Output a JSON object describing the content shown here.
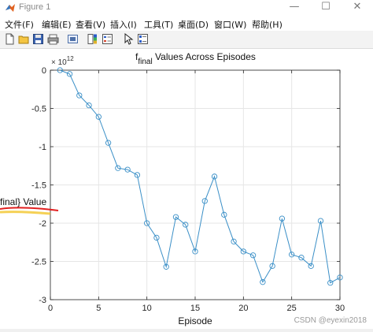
{
  "window": {
    "title": "Figure 1",
    "minimize_glyph": "—",
    "maximize_glyph": "☐",
    "close_glyph": "✕"
  },
  "menu": {
    "items": [
      {
        "label": "文件(F)"
      },
      {
        "label": "编辑(E)"
      },
      {
        "label": "查看(V)"
      },
      {
        "label": "插入(I)"
      },
      {
        "label": "工具(T)"
      },
      {
        "label": "桌面(D)"
      },
      {
        "label": "窗口(W)"
      },
      {
        "label": "帮助(H)"
      }
    ]
  },
  "toolbar": {
    "icons": [
      "new-figure-icon",
      "open-file-icon",
      "save-icon",
      "print-icon",
      "link-plot-icon",
      "colorbar-icon",
      "legend-icon",
      "edit-plot-pointer-icon",
      "property-inspector-icon"
    ]
  },
  "watermark": "CSDN @eyexin2018",
  "chart_data": {
    "type": "line",
    "title_main": "f",
    "title_sub": "final",
    "title_rest": " Values Across Episodes",
    "xlabel": "Episode",
    "ylabel_visible": "final} Value",
    "exponent_base": "× 10",
    "exponent_power": "12",
    "xlim": [
      0,
      30
    ],
    "ylim": [
      -3,
      0
    ],
    "xticks": [
      0,
      5,
      10,
      15,
      20,
      25,
      30
    ],
    "yticks": [
      0,
      -0.5,
      -1,
      -1.5,
      -2,
      -2.5,
      -3
    ],
    "ytick_labels": [
      "0",
      "-0.5",
      "-1",
      "-1.5",
      "-2",
      "-2.5",
      "-3"
    ],
    "grid": true,
    "line_color": "#3a8fc7",
    "marker": "circle",
    "series": [
      {
        "x": [
          1,
          2,
          3,
          4,
          5,
          6,
          7,
          8,
          9,
          10,
          11,
          12,
          13,
          14,
          15,
          16,
          17,
          18,
          19,
          20,
          21,
          22,
          23,
          24,
          25,
          26,
          27,
          28,
          29,
          30
        ],
        "values": [
          0,
          -0.05,
          -0.33,
          -0.46,
          -0.61,
          -0.95,
          -1.28,
          -1.3,
          -1.37,
          -2.0,
          -2.19,
          -2.57,
          -1.92,
          -2.02,
          -2.37,
          -1.71,
          -1.39,
          -1.89,
          -2.24,
          -2.37,
          -2.42,
          -2.77,
          -2.56,
          -1.94,
          -2.41,
          -2.45,
          -2.56,
          -1.97,
          -2.78,
          -2.71
        ]
      }
    ]
  }
}
